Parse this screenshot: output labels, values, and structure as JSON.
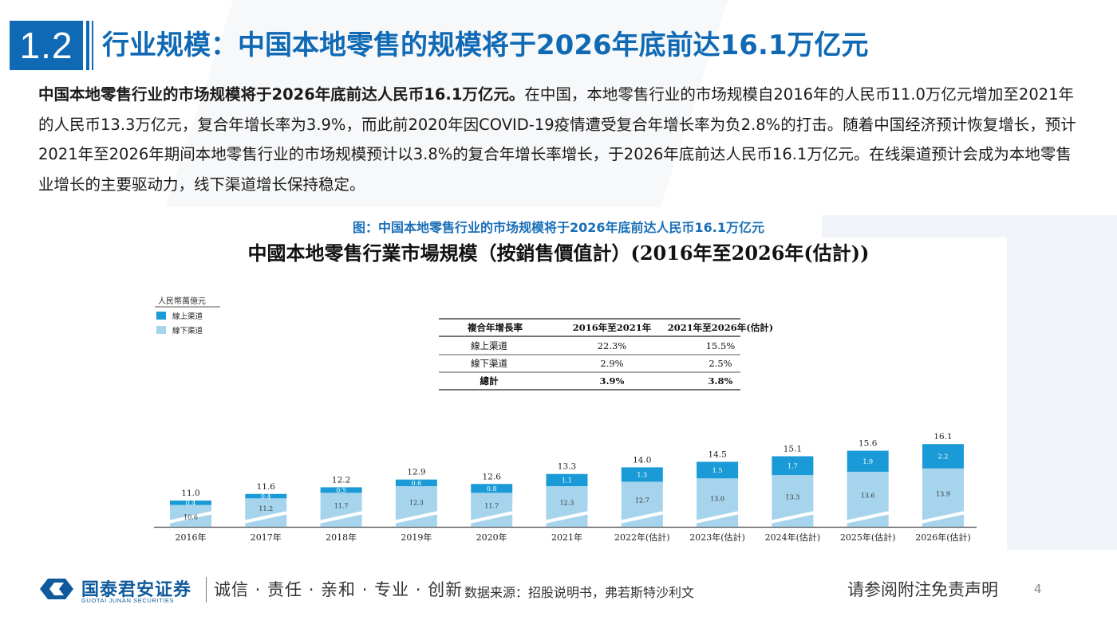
{
  "header": {
    "section_number": "1.2",
    "title": "行业规模：中国本地零售的规模将于2026年底前达16.1万亿元"
  },
  "body": {
    "lead_bold": "中国本地零售行业的市场规模将于2026年底前达人民币16.1万亿元。",
    "text": "在中国，本地零售行业的市场规模自2016年的人民币11.0万亿元增加至2021年的人民币13.3万亿元，复合年增长率为3.9%，而此前2020年因COVID-19疫情遭受复合年增长率为负2.8%的打击。随着中国经济预计恢复增长，预计2021年至2026年期间本地零售行业的市场规模预计以3.8%的复合年增长率增长，于2026年底前达人民币16.1万亿元。在线渠道预计会成为本地零售业增长的主要驱动力，线下渠道增长保持稳定。"
  },
  "figure_caption": "图：中国本地零售行业的市场规模将于2026年底前达人民币16.1万亿元",
  "chart_data": {
    "type": "bar",
    "stacked": true,
    "title": "中國本地零售行業市場規模（按銷售價值計）(2016年至2026年(估計))",
    "ylabel": "人民幣萬億元",
    "ylim": [
      0,
      17
    ],
    "grid": false,
    "legend_placement": "top-left",
    "categories": [
      "2016年",
      "2017年",
      "2018年",
      "2019年",
      "2020年",
      "2021年",
      "2022年(估計)",
      "2023年(估計)",
      "2024年(估計)",
      "2025年(估計)",
      "2026年(估計)"
    ],
    "series": [
      {
        "name": "線下渠道",
        "color": "#a6d4ec",
        "values": [
          10.6,
          11.2,
          11.7,
          12.3,
          11.7,
          12.3,
          12.7,
          13.0,
          13.3,
          13.6,
          13.9
        ]
      },
      {
        "name": "線上渠道",
        "color": "#1a9ad6",
        "values": [
          0.4,
          0.4,
          0.5,
          0.6,
          0.8,
          1.1,
          1.3,
          1.5,
          1.7,
          1.9,
          2.2
        ]
      }
    ],
    "totals": [
      "11.0",
      "11.6",
      "12.2",
      "12.9",
      "12.6",
      "13.3",
      "14.0",
      "14.5",
      "15.1",
      "15.6",
      "16.1"
    ],
    "offline_labels": [
      "10.6",
      "11.2",
      "11.7",
      "12.3",
      "11.7",
      "12.3",
      "12.7",
      "13.0",
      "13.3",
      "13.6",
      "13.9"
    ],
    "online_labels": [
      "0.4",
      "0.4",
      "0.5",
      "0.6",
      "0.8",
      "1.1",
      "1.3",
      "1.5",
      "1.7",
      "1.9",
      "2.2"
    ],
    "cagr_table": {
      "headers": [
        "複合年增長率",
        "2016年至2021年",
        "2021年至2026年(估計)"
      ],
      "rows": [
        [
          "線上渠道",
          "22.3%",
          "15.5%"
        ],
        [
          "線下渠道",
          "2.9%",
          "2.5%"
        ],
        [
          "總計",
          "3.9%",
          "3.8%"
        ]
      ]
    }
  },
  "footer": {
    "brand_cn": "国泰君安证券",
    "brand_en": "GUOTAI JUNAN SECURITIES",
    "slogan": "诚信 · 责任 · 亲和 · 专业 · 创新",
    "source": "数据来源：招股说明书，弗若斯特沙利文",
    "disclaimer": "请参阅附注免责声明",
    "page_number": "4"
  }
}
